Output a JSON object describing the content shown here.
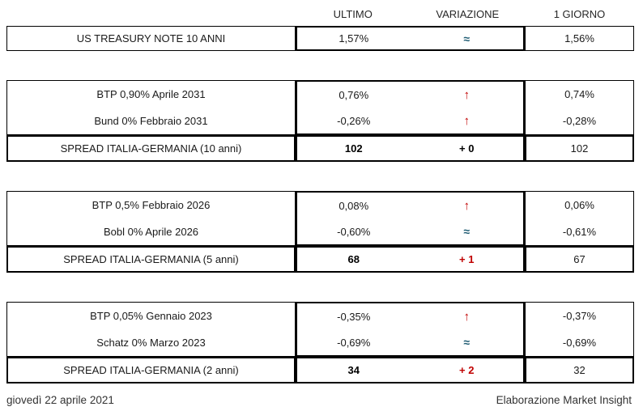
{
  "colors": {
    "red": "#c00000",
    "teal": "#1f5c73",
    "border": "#000000"
  },
  "header": {
    "col_ultimo": "ULTIMO",
    "col_variazione": "VARIAZIONE",
    "col_giorno": "1 GIORNO"
  },
  "blocks": [
    {
      "rows": [
        {
          "label": "US TREASURY NOTE 10 ANNI",
          "ultimo": "1,57%",
          "variazione": "≈",
          "var_type": "flat",
          "giorno": "1,56%"
        }
      ],
      "spread": null
    },
    {
      "rows": [
        {
          "label": "BTP 0,90% Aprile 2031",
          "ultimo": "0,76%",
          "variazione": "↑",
          "var_type": "up",
          "giorno": "0,74%"
        },
        {
          "label": "Bund 0% Febbraio 2031",
          "ultimo": "-0,26%",
          "variazione": "↑",
          "var_type": "up",
          "giorno": "-0,28%"
        }
      ],
      "spread": {
        "label": "SPREAD ITALIA-GERMANIA (10 anni)",
        "ultimo": "102",
        "variazione": "+ 0",
        "var_color": "neutral",
        "giorno": "102"
      }
    },
    {
      "rows": [
        {
          "label": "BTP 0,5% Febbraio 2026",
          "ultimo": "0,08%",
          "variazione": "↑",
          "var_type": "up",
          "giorno": "0,06%"
        },
        {
          "label": "Bobl 0% Aprile 2026",
          "ultimo": "-0,60%",
          "variazione": "≈",
          "var_type": "flat",
          "giorno": "-0,61%"
        }
      ],
      "spread": {
        "label": "SPREAD ITALIA-GERMANIA (5 anni)",
        "ultimo": "68",
        "variazione": "+ 1",
        "var_color": "red",
        "giorno": "67"
      }
    },
    {
      "rows": [
        {
          "label": "BTP 0,05% Gennaio 2023",
          "ultimo": "-0,35%",
          "variazione": "↑",
          "var_type": "up",
          "giorno": "-0,37%"
        },
        {
          "label": "Schatz 0% Marzo 2023",
          "ultimo": "-0,69%",
          "variazione": "≈",
          "var_type": "flat",
          "giorno": "-0,69%"
        }
      ],
      "spread": {
        "label": "SPREAD ITALIA-GERMANIA (2 anni)",
        "ultimo": "34",
        "variazione": "+ 2",
        "var_color": "red",
        "giorno": "32"
      }
    }
  ],
  "footer": {
    "date": "giovedì 22 aprile 2021",
    "credit": "Elaborazione Market Insight"
  }
}
